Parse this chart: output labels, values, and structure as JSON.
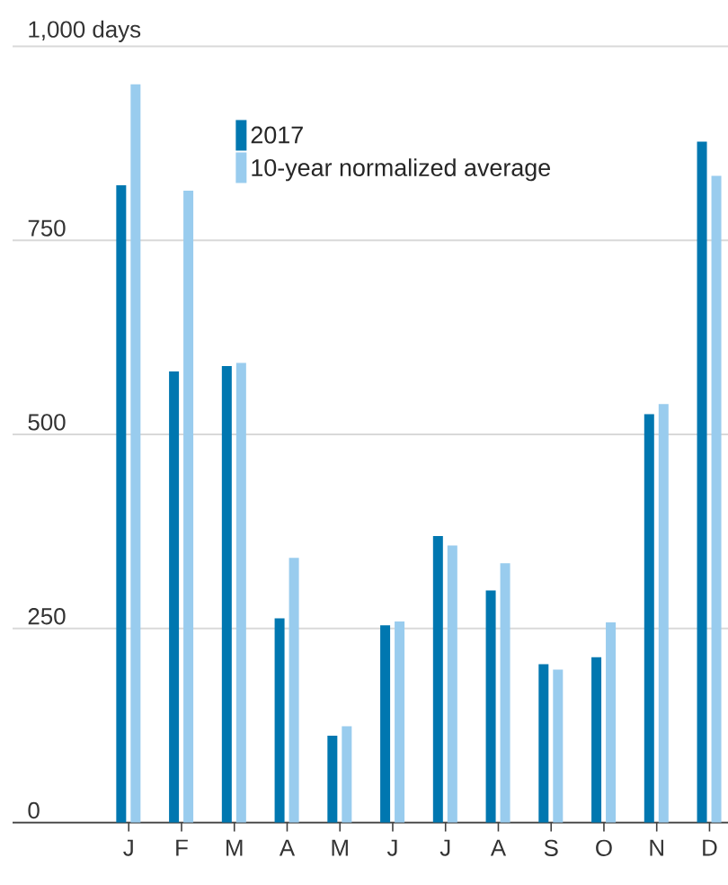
{
  "chart_data": {
    "type": "bar",
    "categories": [
      "J",
      "F",
      "M",
      "A",
      "M",
      "J",
      "J",
      "A",
      "S",
      "O",
      "N",
      "D"
    ],
    "series": [
      {
        "name": "2017",
        "color": "#0077b0",
        "values": [
          821,
          581,
          588,
          263,
          112,
          254,
          369,
          299,
          204,
          213,
          526,
          877
        ]
      },
      {
        "name": "10-year normalized average",
        "color": "#99ccee",
        "values": [
          951,
          814,
          592,
          341,
          124,
          259,
          357,
          334,
          197,
          258,
          539,
          833
        ]
      }
    ],
    "ylim": [
      0,
      1000
    ],
    "yticks": [
      0,
      250,
      500,
      750,
      {
        "value": 1000,
        "label": "1,000 days"
      }
    ],
    "grid": "y",
    "legend": "top"
  }
}
